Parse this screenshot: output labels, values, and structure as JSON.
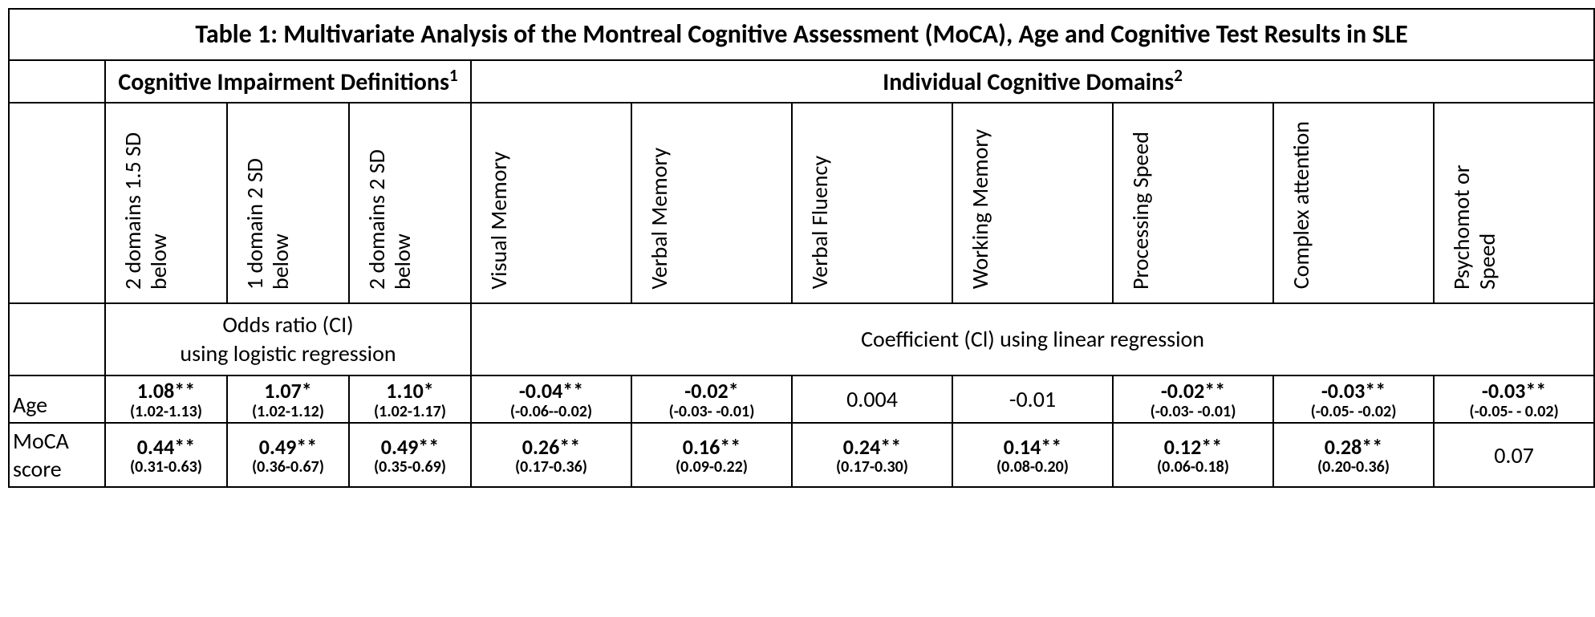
{
  "table": {
    "title": "Table 1: Multivariate Analysis of the Montreal Cognitive Assessment (MoCA), Age and Cognitive Test Results in SLE",
    "group_headers": {
      "definitions": "Cognitive Impairment Definitions",
      "definitions_sup": "1",
      "domains": "Individual Cognitive Domains",
      "domains_sup": "2"
    },
    "columns": {
      "def1": "2 domains 1.5 SD below",
      "def2": "1 domain 2 SD below",
      "def3": "2 domains 2 SD below",
      "dom1": "Visual Memory",
      "dom2": "Verbal Memory",
      "dom3": "Verbal Fluency",
      "dom4": "Working Memory",
      "dom5": "Processing Speed",
      "dom6": "Complex attention",
      "dom7": "Psychomot or Speed"
    },
    "sub_headers": {
      "definitions": "Odds ratio (CI)\nusing logistic regression",
      "domains": "Coefficient (Cl) using linear regression"
    },
    "rows": {
      "age": {
        "label": "Age",
        "cells": [
          {
            "value": "1.08**",
            "ci": "(1.02-1.13)",
            "bold": true
          },
          {
            "value": "1.07*",
            "ci": "(1.02-1.12)",
            "bold": true
          },
          {
            "value": "1.10*",
            "ci": "(1.02-1.17)",
            "bold": true
          },
          {
            "value": "-0.04**",
            "ci": "(-0.06--0.02)",
            "bold": true
          },
          {
            "value": "-0.02*",
            "ci": "(-0.03- -0.01)",
            "bold": true
          },
          {
            "value": "0.004",
            "ci": "",
            "bold": false
          },
          {
            "value": "-0.01",
            "ci": "",
            "bold": false
          },
          {
            "value": "-0.02**",
            "ci": "(-0.03- -0.01)",
            "bold": true
          },
          {
            "value": "-0.03**",
            "ci": "(-0.05- -0.02)",
            "bold": true
          },
          {
            "value": "-0.03**",
            "ci": "(-0.05- - 0.02)",
            "bold": true
          }
        ]
      },
      "moca": {
        "label": "MoCA score",
        "cells": [
          {
            "value": "0.44**",
            "ci": "(0.31-0.63)",
            "bold": true
          },
          {
            "value": "0.49**",
            "ci": "(0.36-0.67)",
            "bold": true
          },
          {
            "value": "0.49**",
            "ci": "(0.35-0.69)",
            "bold": true
          },
          {
            "value": "0.26**",
            "ci": "(0.17-0.36)",
            "bold": true
          },
          {
            "value": "0.16**",
            "ci": "(0.09-0.22)",
            "bold": true
          },
          {
            "value": "0.24**",
            "ci": "(0.17-0.30)",
            "bold": true
          },
          {
            "value": "0.14**",
            "ci": "(0.08-0.20)",
            "bold": true
          },
          {
            "value": "0.12**",
            "ci": "(0.06-0.18)",
            "bold": true
          },
          {
            "value": "0.28**",
            "ci": "(0.20-0.36)",
            "bold": true
          },
          {
            "value": "0.07",
            "ci": "",
            "bold": false
          }
        ]
      }
    }
  },
  "style": {
    "text_color": "#000000",
    "background_color": "#ffffff",
    "border_color": "#000000",
    "title_fontsize": 32,
    "header_fontsize": 30,
    "vertical_label_fontsize": 28,
    "subheader_fontsize": 28,
    "rowlabel_fontsize": 28,
    "value_fontsize_bold": 26,
    "value_fontsize_plain": 28,
    "ci_fontsize": 20,
    "font_family": "Calibri"
  }
}
